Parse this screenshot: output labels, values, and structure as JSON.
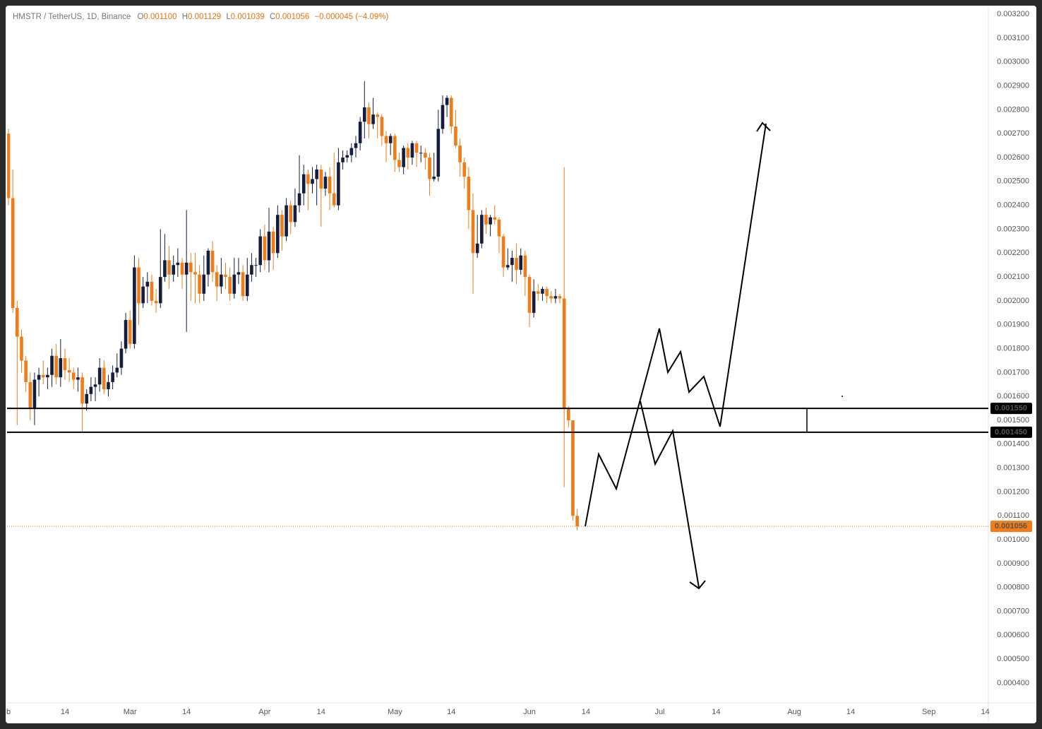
{
  "header": {
    "symbol": "HMSTR / TetherUS, 1D, Binance",
    "o_label": "O",
    "open": "0.001100",
    "h_label": "H",
    "high": "0.001129",
    "l_label": "L",
    "low": "0.001039",
    "c_label": "C",
    "close": "0.001056",
    "change": "−0.000045 (−4.09%)"
  },
  "chart_data": {
    "type": "candlestick",
    "up_color": "#161c3e",
    "down_color": "#f07b17",
    "open": [
      0.0027,
      0.00243,
      0.00197,
      0.00185,
      0.00175,
      0.00166,
      0.00155,
      0.00167,
      0.00169,
      0.00168,
      0.00169,
      0.00177,
      0.00168,
      0.00176,
      0.00171,
      0.0017,
      0.00167,
      0.00168,
      0.00157,
      0.00161,
      0.00164,
      0.00165,
      0.00172,
      0.00163,
      0.00166,
      0.0017,
      0.00172,
      0.0018,
      0.00192,
      0.00182,
      0.00214,
      0.00199,
      0.00206,
      0.00208,
      0.002,
      0.00199,
      0.0021,
      0.00217,
      0.00211,
      0.00215,
      0.00216,
      0.00211,
      0.00216,
      0.00212,
      0.00211,
      0.00203,
      0.00211,
      0.00221,
      0.00212,
      0.00206,
      0.00211,
      0.0021,
      0.00203,
      0.00211,
      0.00212,
      0.00202,
      0.00211,
      0.00215,
      0.00215,
      0.00227,
      0.00217,
      0.00229,
      0.0022,
      0.00236,
      0.00227,
      0.0024,
      0.00233,
      0.0024,
      0.00245,
      0.00253,
      0.00249,
      0.00251,
      0.00255,
      0.00247,
      0.00252,
      0.00245,
      0.0024,
      0.00258,
      0.0026,
      0.00261,
      0.00264,
      0.00266,
      0.00275,
      0.00281,
      0.00274,
      0.00278,
      0.00277,
      0.00269,
      0.00266,
      0.00269,
      0.00259,
      0.00256,
      0.00264,
      0.0026,
      0.00266,
      0.00262,
      0.00262,
      0.0026,
      0.00251,
      0.00252,
      0.00272,
      0.00282,
      0.00285,
      0.00273,
      0.00265,
      0.00258,
      0.00252,
      0.00238,
      0.0022,
      0.00224,
      0.00236,
      0.00232,
      0.00235,
      0.00234,
      0.00227,
      0.00214,
      0.00215,
      0.00218,
      0.00213,
      0.00219,
      0.0021,
      0.00195,
      0.00204,
      0.00203,
      0.00205,
      0.00202,
      0.00201,
      0.00202,
      0.00201,
      0.00155,
      0.0015,
      0.0011
    ],
    "high": [
      0.00272,
      0.00255,
      0.002,
      0.00188,
      0.00177,
      0.0017,
      0.0017,
      0.00172,
      0.00175,
      0.00172,
      0.0018,
      0.00182,
      0.00184,
      0.0018,
      0.00176,
      0.00172,
      0.00172,
      0.0017,
      0.00163,
      0.00168,
      0.00168,
      0.00176,
      0.00175,
      0.00169,
      0.00173,
      0.00178,
      0.00183,
      0.00195,
      0.00196,
      0.00219,
      0.00218,
      0.0021,
      0.00212,
      0.00211,
      0.00205,
      0.0023,
      0.00228,
      0.00223,
      0.00219,
      0.00222,
      0.00218,
      0.00238,
      0.0022,
      0.0022,
      0.00215,
      0.00219,
      0.00222,
      0.00225,
      0.00215,
      0.00218,
      0.00216,
      0.00214,
      0.00218,
      0.00218,
      0.00215,
      0.00218,
      0.0022,
      0.00218,
      0.0023,
      0.00232,
      0.00239,
      0.00231,
      0.0024,
      0.00238,
      0.00243,
      0.00242,
      0.00247,
      0.00261,
      0.00257,
      0.00255,
      0.00256,
      0.00257,
      0.00257,
      0.00254,
      0.00256,
      0.00262,
      0.00264,
      0.00263,
      0.00263,
      0.00266,
      0.00269,
      0.00277,
      0.00292,
      0.00283,
      0.00285,
      0.00279,
      0.00278,
      0.00271,
      0.0027,
      0.0027,
      0.00262,
      0.00265,
      0.00266,
      0.00267,
      0.00267,
      0.00265,
      0.00264,
      0.00262,
      0.00262,
      0.0028,
      0.00286,
      0.00286,
      0.00286,
      0.0028,
      0.00268,
      0.0026,
      0.00256,
      0.00245,
      0.00236,
      0.00238,
      0.00239,
      0.00236,
      0.0024,
      0.00235,
      0.00228,
      0.00222,
      0.00221,
      0.00224,
      0.00222,
      0.00221,
      0.00211,
      0.00209,
      0.00207,
      0.00206,
      0.00206,
      0.00204,
      0.00205,
      0.00203,
      0.00256,
      0.00156,
      0.0015,
      0.001129
    ],
    "low": [
      0.0024,
      0.00195,
      0.00148,
      0.0017,
      0.00162,
      0.0015,
      0.00148,
      0.0016,
      0.00165,
      0.00163,
      0.00164,
      0.00165,
      0.00164,
      0.00167,
      0.00166,
      0.00163,
      0.00162,
      0.00145,
      0.00154,
      0.00158,
      0.00158,
      0.00162,
      0.00161,
      0.0016,
      0.00163,
      0.00168,
      0.00169,
      0.00178,
      0.0018,
      0.0018,
      0.0019,
      0.00197,
      0.00199,
      0.00198,
      0.00195,
      0.00197,
      0.00208,
      0.00205,
      0.00208,
      0.0021,
      0.00205,
      0.00187,
      0.002,
      0.00199,
      0.00199,
      0.002,
      0.00206,
      0.00208,
      0.002,
      0.00203,
      0.00205,
      0.002,
      0.00201,
      0.00207,
      0.002,
      0.002,
      0.00208,
      0.0021,
      0.00212,
      0.00213,
      0.00212,
      0.00213,
      0.00218,
      0.00221,
      0.00225,
      0.00228,
      0.00231,
      0.00237,
      0.0024,
      0.00238,
      0.00245,
      0.0024,
      0.00231,
      0.00244,
      0.00238,
      0.00239,
      0.00238,
      0.00255,
      0.00258,
      0.00258,
      0.0026,
      0.00263,
      0.00268,
      0.00268,
      0.00272,
      0.00268,
      0.00265,
      0.00258,
      0.00261,
      0.00254,
      0.00254,
      0.00253,
      0.00255,
      0.00257,
      0.00256,
      0.00258,
      0.00255,
      0.00244,
      0.0025,
      0.0025,
      0.0027,
      0.00277,
      0.0027,
      0.00264,
      0.00252,
      0.00247,
      0.0023,
      0.00203,
      0.00218,
      0.00222,
      0.00228,
      0.00227,
      0.00232,
      0.0022,
      0.0021,
      0.00213,
      0.00208,
      0.00207,
      0.00211,
      0.00202,
      0.00189,
      0.00193,
      0.002,
      0.002,
      0.00199,
      0.00199,
      0.00199,
      0.00199,
      0.00122,
      0.00147,
      0.00108,
      0.001039
    ],
    "close": [
      0.00243,
      0.00197,
      0.00185,
      0.00175,
      0.00166,
      0.00155,
      0.00167,
      0.00169,
      0.00168,
      0.00169,
      0.00177,
      0.00168,
      0.00176,
      0.00171,
      0.0017,
      0.00167,
      0.00168,
      0.00157,
      0.00161,
      0.00164,
      0.00165,
      0.00172,
      0.00163,
      0.00166,
      0.0017,
      0.00172,
      0.0018,
      0.00192,
      0.00182,
      0.00214,
      0.00199,
      0.00206,
      0.00208,
      0.002,
      0.00199,
      0.0021,
      0.00217,
      0.00211,
      0.00215,
      0.00216,
      0.00211,
      0.00216,
      0.00212,
      0.00211,
      0.00203,
      0.00211,
      0.00221,
      0.00212,
      0.00206,
      0.00211,
      0.0021,
      0.00203,
      0.00211,
      0.00212,
      0.00202,
      0.00211,
      0.00215,
      0.00215,
      0.00227,
      0.00217,
      0.00229,
      0.0022,
      0.00236,
      0.00227,
      0.0024,
      0.00233,
      0.0024,
      0.00245,
      0.00253,
      0.00249,
      0.00251,
      0.00255,
      0.00247,
      0.00252,
      0.00245,
      0.0024,
      0.00258,
      0.0026,
      0.00261,
      0.00264,
      0.00266,
      0.00275,
      0.00281,
      0.00274,
      0.00278,
      0.00277,
      0.00269,
      0.00266,
      0.00269,
      0.00259,
      0.00256,
      0.00264,
      0.0026,
      0.00266,
      0.00262,
      0.00262,
      0.0026,
      0.00251,
      0.00252,
      0.00272,
      0.00282,
      0.00285,
      0.00273,
      0.00265,
      0.00258,
      0.00252,
      0.00238,
      0.0022,
      0.00224,
      0.00236,
      0.00232,
      0.00235,
      0.00234,
      0.00227,
      0.00214,
      0.00215,
      0.00218,
      0.00213,
      0.00219,
      0.0021,
      0.00195,
      0.00204,
      0.00203,
      0.00205,
      0.00202,
      0.00201,
      0.00202,
      0.00201,
      0.00155,
      0.0015,
      0.0011,
      0.001056
    ],
    "ylim": [
      0.000317,
      0.00323
    ],
    "xlim": [
      -0.33,
      225.7
    ],
    "yticks": [
      {
        "value": 0.0004,
        "label": "0.000400"
      },
      {
        "value": 0.0005,
        "label": "0.000500"
      },
      {
        "value": 0.0006,
        "label": "0.000600"
      },
      {
        "value": 0.0007,
        "label": "0.000700"
      },
      {
        "value": 0.0008,
        "label": "0.000800"
      },
      {
        "value": 0.0009,
        "label": "0.000900"
      },
      {
        "value": 0.001,
        "label": "0.001000"
      },
      {
        "value": 0.0011,
        "label": "0.001100"
      },
      {
        "value": 0.0012,
        "label": "0.001200"
      },
      {
        "value": 0.0013,
        "label": "0.001300"
      },
      {
        "value": 0.0014,
        "label": "0.001400"
      },
      {
        "value": 0.0015,
        "label": "0.001500"
      },
      {
        "value": 0.0016,
        "label": "0.001600"
      },
      {
        "value": 0.0017,
        "label": "0.001700"
      },
      {
        "value": 0.0018,
        "label": "0.001800"
      },
      {
        "value": 0.0019,
        "label": "0.001900"
      },
      {
        "value": 0.002,
        "label": "0.002000"
      },
      {
        "value": 0.0021,
        "label": "0.002100"
      },
      {
        "value": 0.0022,
        "label": "0.002200"
      },
      {
        "value": 0.0023,
        "label": "0.002300"
      },
      {
        "value": 0.0024,
        "label": "0.002400"
      },
      {
        "value": 0.0025,
        "label": "0.002500"
      },
      {
        "value": 0.0026,
        "label": "0.002600"
      },
      {
        "value": 0.0027,
        "label": "0.002700"
      },
      {
        "value": 0.0028,
        "label": "0.002800"
      },
      {
        "value": 0.0029,
        "label": "0.002900"
      },
      {
        "value": 0.003,
        "label": "0.003000"
      },
      {
        "value": 0.0031,
        "label": "0.003100"
      },
      {
        "value": 0.0032,
        "label": "0.003200"
      }
    ],
    "xticks": [
      {
        "value": 0,
        "label": "b"
      },
      {
        "value": 13,
        "label": "14"
      },
      {
        "value": 28,
        "label": "Mar"
      },
      {
        "value": 41,
        "label": "14"
      },
      {
        "value": 59,
        "label": "Apr"
      },
      {
        "value": 72,
        "label": "14"
      },
      {
        "value": 89,
        "label": "May"
      },
      {
        "value": 102,
        "label": "14"
      },
      {
        "value": 120,
        "label": "Jun"
      },
      {
        "value": 133,
        "label": "14"
      },
      {
        "value": 150,
        "label": "Jul"
      },
      {
        "value": 163,
        "label": "14"
      },
      {
        "value": 181,
        "label": "Aug"
      },
      {
        "value": 194,
        "label": "14"
      },
      {
        "value": 212,
        "label": "Sep"
      },
      {
        "value": 225,
        "label": "14"
      }
    ],
    "levels": [
      {
        "value": 0.00155,
        "label": "0.001550"
      },
      {
        "value": 0.00145,
        "label": "0.001450"
      }
    ],
    "last_price": {
      "value": 0.001056,
      "label": "0.001056"
    }
  }
}
